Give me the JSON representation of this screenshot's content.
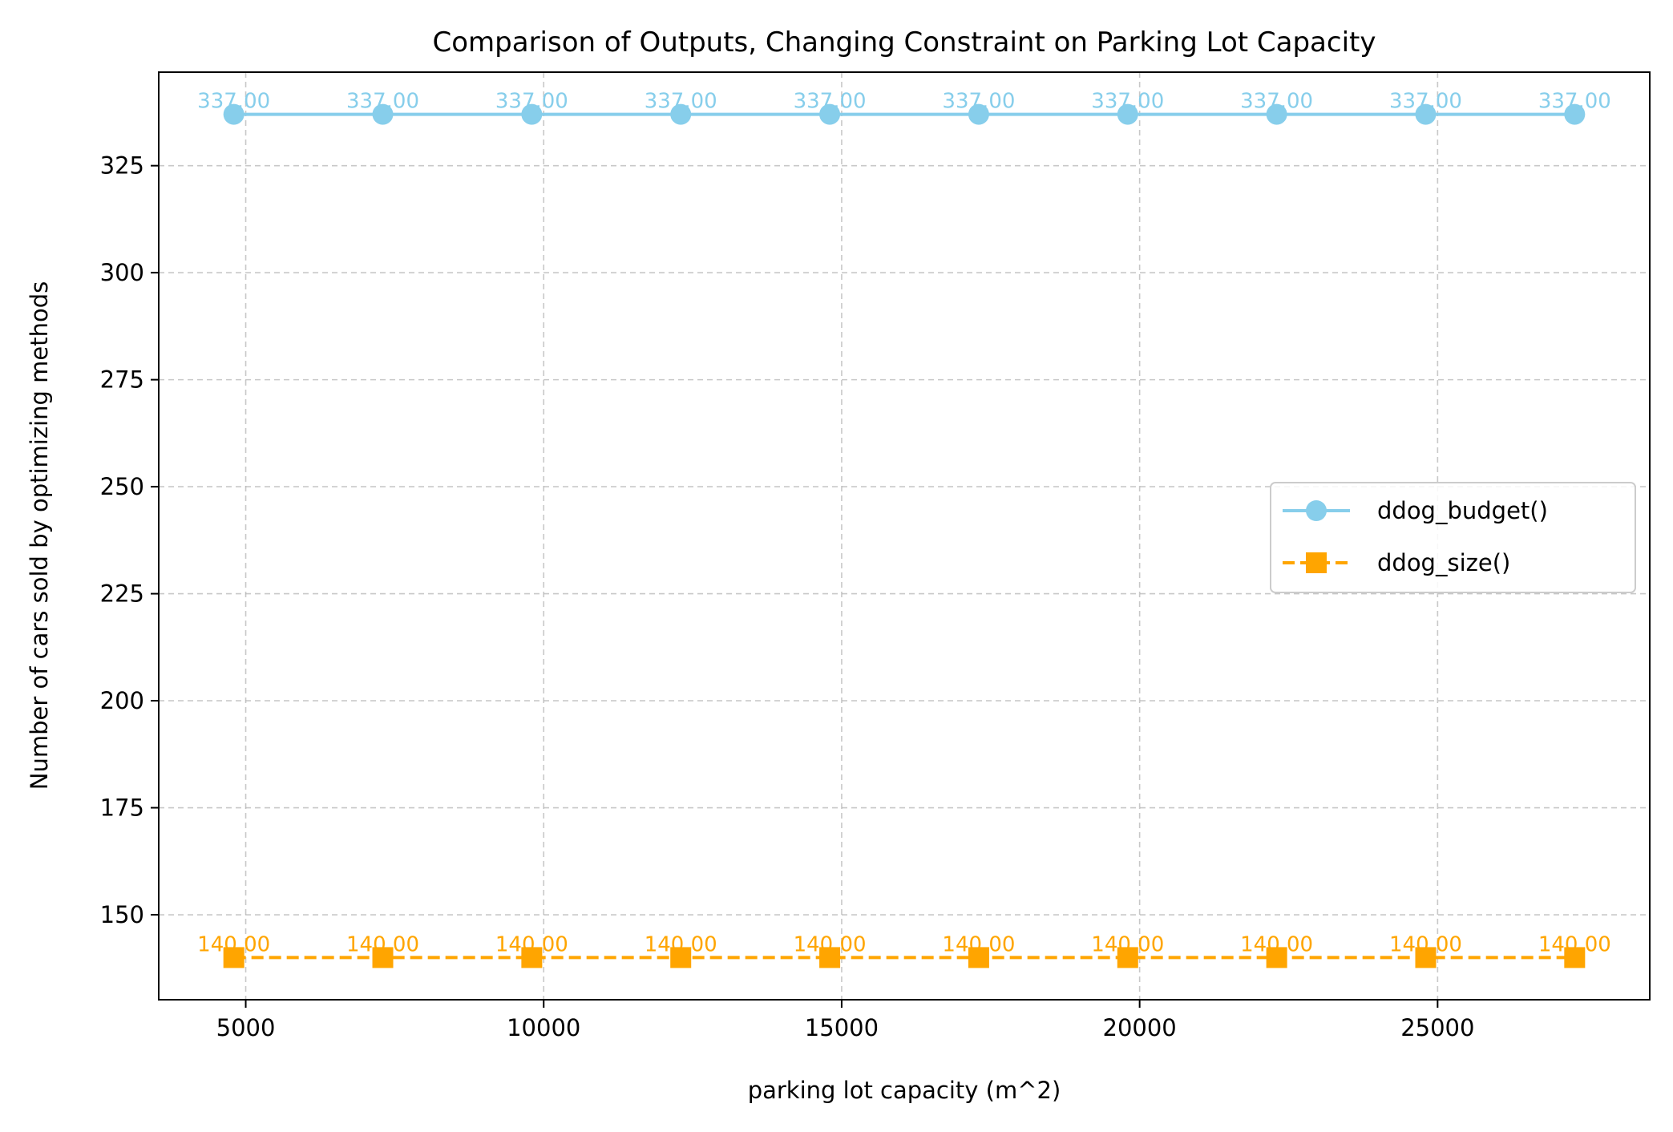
{
  "chart_data": {
    "type": "line",
    "title": "Comparison of Outputs, Changing Constraint on Parking Lot Capacity",
    "xlabel": "parking lot capacity (m^2)",
    "ylabel": "Number of cars sold by optimizing methods",
    "x": [
      4800,
      7300,
      9800,
      12300,
      14800,
      17300,
      19800,
      22300,
      24800,
      27300
    ],
    "xlim": [
      3540,
      28560
    ],
    "ylim": [
      130.15,
      346.85
    ],
    "xticks": [
      5000,
      10000,
      15000,
      20000,
      25000
    ],
    "xtick_labels": [
      "5000",
      "10000",
      "15000",
      "20000",
      "25000"
    ],
    "yticks": [
      150,
      175,
      200,
      225,
      250,
      275,
      300,
      325
    ],
    "ytick_labels": [
      "150",
      "175",
      "200",
      "225",
      "250",
      "275",
      "300",
      "325"
    ],
    "grid": true,
    "legend_position": "center-right",
    "series": [
      {
        "name": "ddog_budget()",
        "values": [
          337,
          337,
          337,
          337,
          337,
          337,
          337,
          337,
          337,
          337
        ],
        "data_labels": [
          "337.00",
          "337.00",
          "337.00",
          "337.00",
          "337.00",
          "337.00",
          "337.00",
          "337.00",
          "337.00",
          "337.00"
        ],
        "color": "#87ceeb",
        "marker": "circle",
        "line_style": "solid"
      },
      {
        "name": "ddog_size()",
        "values": [
          140,
          140,
          140,
          140,
          140,
          140,
          140,
          140,
          140,
          140
        ],
        "data_labels": [
          "140.00",
          "140.00",
          "140.00",
          "140.00",
          "140.00",
          "140.00",
          "140.00",
          "140.00",
          "140.00",
          "140.00"
        ],
        "color": "#ffa500",
        "marker": "square",
        "line_style": "dashed"
      }
    ]
  }
}
